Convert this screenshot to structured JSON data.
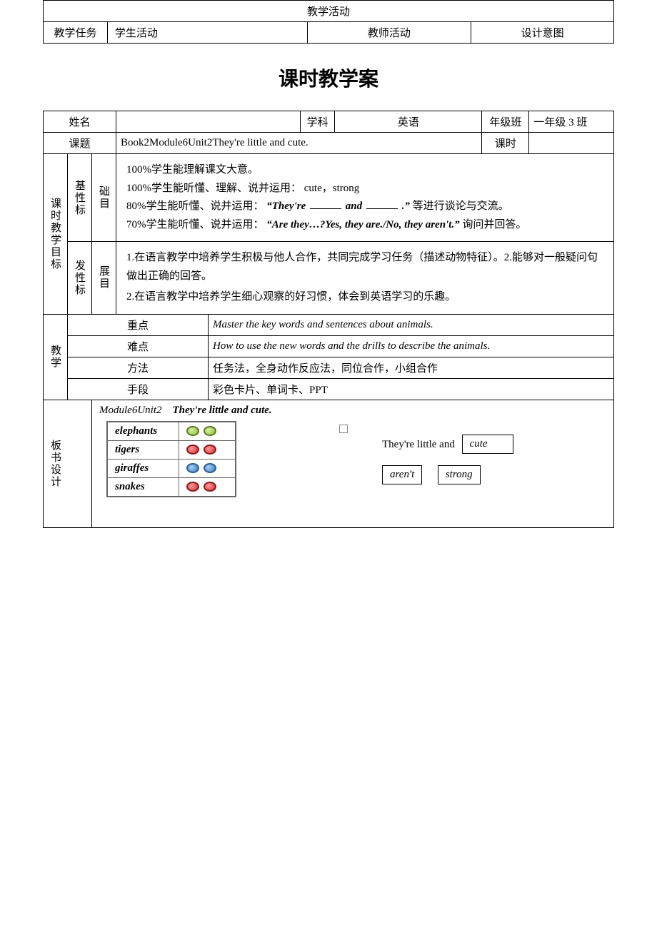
{
  "top_table": {
    "title": "教学活动",
    "cols": [
      "教学任务",
      "学生活动",
      "教师活动",
      "设计意图"
    ]
  },
  "page_title": "课时教学案",
  "row1": {
    "name_label": "姓名",
    "name_value": "",
    "subject_label": "学科",
    "subject_value": "英语",
    "class_label": "年级班",
    "class_value": "一年级 3 班"
  },
  "row2": {
    "topic_label": "课题",
    "topic_value": "Book2Module6Unit2They're little and cute.",
    "period_label": "课时",
    "period_value": ""
  },
  "goals": {
    "side_label": "课时教学目标",
    "basic_l1": "基性标",
    "basic_l2": "础目",
    "basic_text_1": "100%学生能理解课文大意。",
    "basic_text_2a": "100%学生能听懂、理解、说并运用：  cute，strong",
    "basic_text_3a": "80%学生能听懂、说并运用：   ",
    "basic_text_3b": "“They're ",
    "basic_text_3c": " and ",
    "basic_text_3d": ".”",
    "basic_text_3e": "等进行谈论与交流。",
    "basic_text_4a": "70%学生能听懂、说并运用：",
    "basic_text_4b": "“Are they…?Yes, they are./No, they aren't.”",
    "basic_text_4c": "询问并回答。",
    "dev_l1": "发性标",
    "dev_l2": "展目",
    "dev_text_1": "1.在语言教学中培养学生积极与他人合作，共同完成学习任务（描述动物特征）。2.能够对一般疑问句做出正确的回答。",
    "dev_text_2": "2.在语言教学中培养学生细心观察的好习惯，体会到英语学习的乐趣。"
  },
  "teach": {
    "side_label": "教学",
    "rows": [
      {
        "label": "重点",
        "content": "Master the key words and sentences about animals."
      },
      {
        "label": "难点",
        "content": "How to use the new words and the drills to describe the animals."
      },
      {
        "label": "方法",
        "content": "任务法，全身动作反应法，同位合作，小组合作"
      },
      {
        "label": "手段",
        "content": "彩色卡片、单词卡、PPT"
      }
    ]
  },
  "board": {
    "side_label": "板书设计",
    "title_prefix": "Module6Unit2",
    "title_main": "They're little and cute.",
    "animals": [
      {
        "name": "elephants",
        "dots": [
          "green",
          "green"
        ]
      },
      {
        "name": "tigers",
        "dots": [
          "red",
          "red"
        ]
      },
      {
        "name": "giraffes",
        "dots": [
          "blue",
          "blue"
        ]
      },
      {
        "name": "snakes",
        "dots": [
          "red",
          "red"
        ]
      }
    ],
    "phrase": "They're little and",
    "box_right_top": "cute",
    "box_left_bottom": "aren't",
    "box_right_bottom": "strong"
  },
  "colors": {
    "border": "#000000",
    "bg": "#ffffff",
    "dot_green": "#8ebf3f",
    "dot_red": "#d32f2f",
    "dot_blue": "#3a7fc4"
  }
}
